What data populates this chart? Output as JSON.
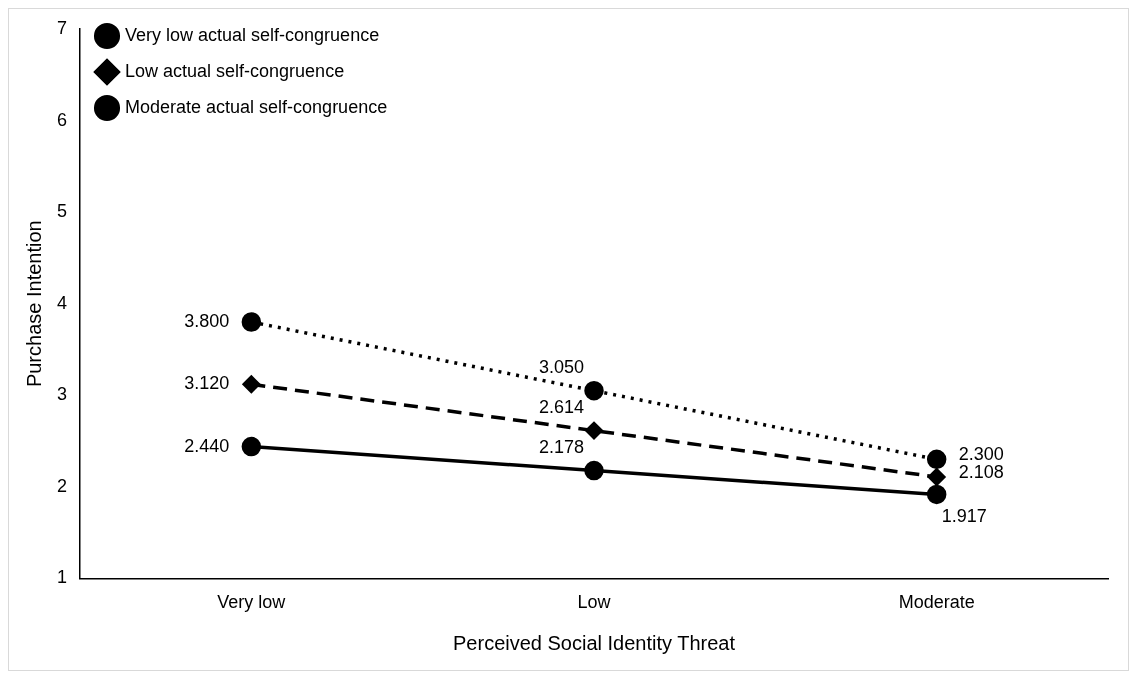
{
  "chart_data": {
    "type": "line",
    "xlabel": "Perceived Social Identity Threat",
    "ylabel": "Purchase Intention",
    "categories": [
      "Very low",
      "Low",
      "Moderate"
    ],
    "series": [
      {
        "name": "Very low actual self-congruence",
        "color": "#000000",
        "values": [
          2.44,
          2.178,
          1.917
        ],
        "value_labels": [
          "2.440",
          "2.178",
          "1.917"
        ],
        "marker": "circle",
        "line_style": "solid"
      },
      {
        "name": "Low actual self-congruence",
        "color": "#000000",
        "values": [
          3.12,
          2.614,
          2.108
        ],
        "value_labels": [
          "3.120",
          "2.614",
          "2.108"
        ],
        "marker": "diamond",
        "line_style": "dashed"
      },
      {
        "name": "Moderate actual self-congruence",
        "color": "#000000",
        "values": [
          3.8,
          3.05,
          2.3
        ],
        "value_labels": [
          "3.800",
          "3.050",
          "2.300"
        ],
        "marker": "circle",
        "line_style": "dotted"
      }
    ],
    "ylim": [
      1,
      7
    ],
    "yticks": [
      1,
      2,
      3,
      4,
      5,
      6,
      7
    ],
    "grid": false,
    "legend": "top left"
  }
}
